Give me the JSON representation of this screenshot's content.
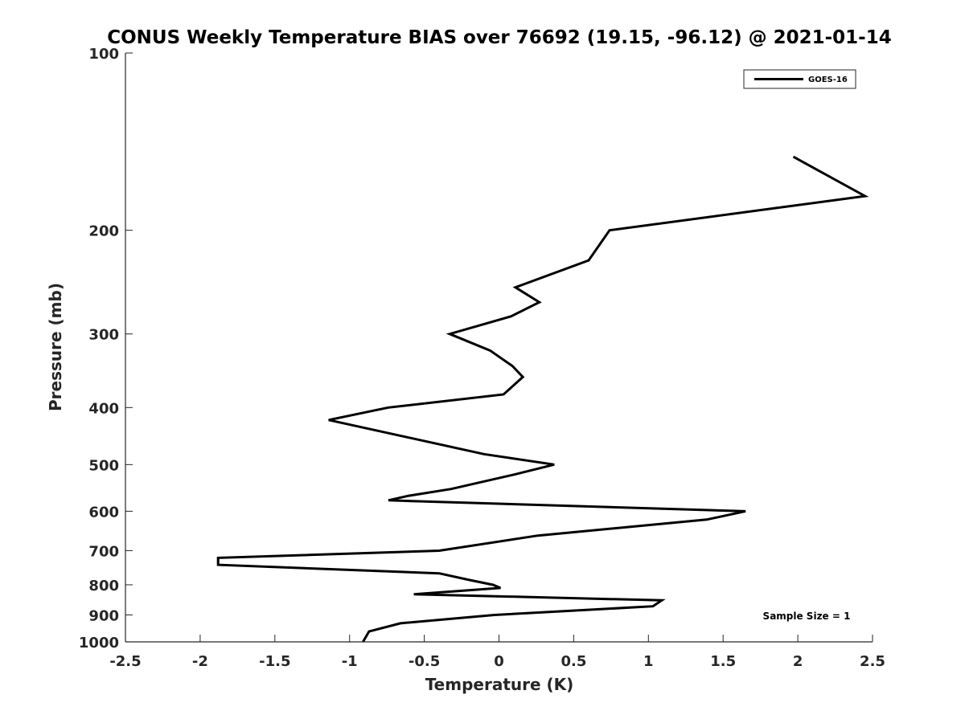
{
  "chart_data": {
    "type": "line",
    "title": "CONUS Weekly Temperature BIAS over 76692 (19.15, -96.12) @ 2021-01-14",
    "xlabel": "Temperature (K)",
    "ylabel": "Pressure (mb)",
    "xlim": [
      -2.5,
      2.5
    ],
    "ylim": [
      100,
      1000
    ],
    "y_scale": "log",
    "y_reversed": true,
    "x_ticks": [
      "-2.5",
      "-2",
      "-1.5",
      "-1",
      "-0.5",
      "0",
      "0.5",
      "1",
      "1.5",
      "2",
      "2.5"
    ],
    "x_tick_values": [
      -2.5,
      -2,
      -1.5,
      -1,
      -0.5,
      0,
      0.5,
      1,
      1.5,
      2,
      2.5
    ],
    "y_ticks": [
      "100",
      "200",
      "300",
      "400",
      "500",
      "600",
      "700",
      "800",
      "900",
      "1000"
    ],
    "y_tick_values": [
      100,
      200,
      300,
      400,
      500,
      600,
      700,
      800,
      900,
      1000
    ],
    "grid": false,
    "legend_position": "top-right",
    "annotation": "Sample Size = 1",
    "series": [
      {
        "name": "GOES-16",
        "color": "#000000",
        "x": [
          1.97,
          2.45,
          0.74,
          0.6,
          0.11,
          0.27,
          0.08,
          -0.33,
          -0.06,
          0.09,
          0.16,
          0.03,
          -0.74,
          -1.14,
          -0.1,
          0.37,
          0.1,
          -0.32,
          -0.61,
          -0.74,
          1.65,
          1.39,
          0.26,
          -0.4,
          -1.88,
          -1.88,
          -0.4,
          -0.2,
          -0.04,
          0.01,
          -0.57,
          1.09,
          1.03,
          -0.03,
          -0.66,
          -0.87,
          -0.91
        ],
        "y": [
          150,
          175,
          200,
          225,
          250,
          265,
          280,
          300,
          320,
          340,
          355,
          380,
          400,
          420,
          480,
          500,
          520,
          550,
          565,
          575,
          600,
          620,
          660,
          700,
          720,
          740,
          765,
          785,
          800,
          810,
          830,
          850,
          870,
          900,
          930,
          960,
          1000
        ]
      }
    ]
  }
}
